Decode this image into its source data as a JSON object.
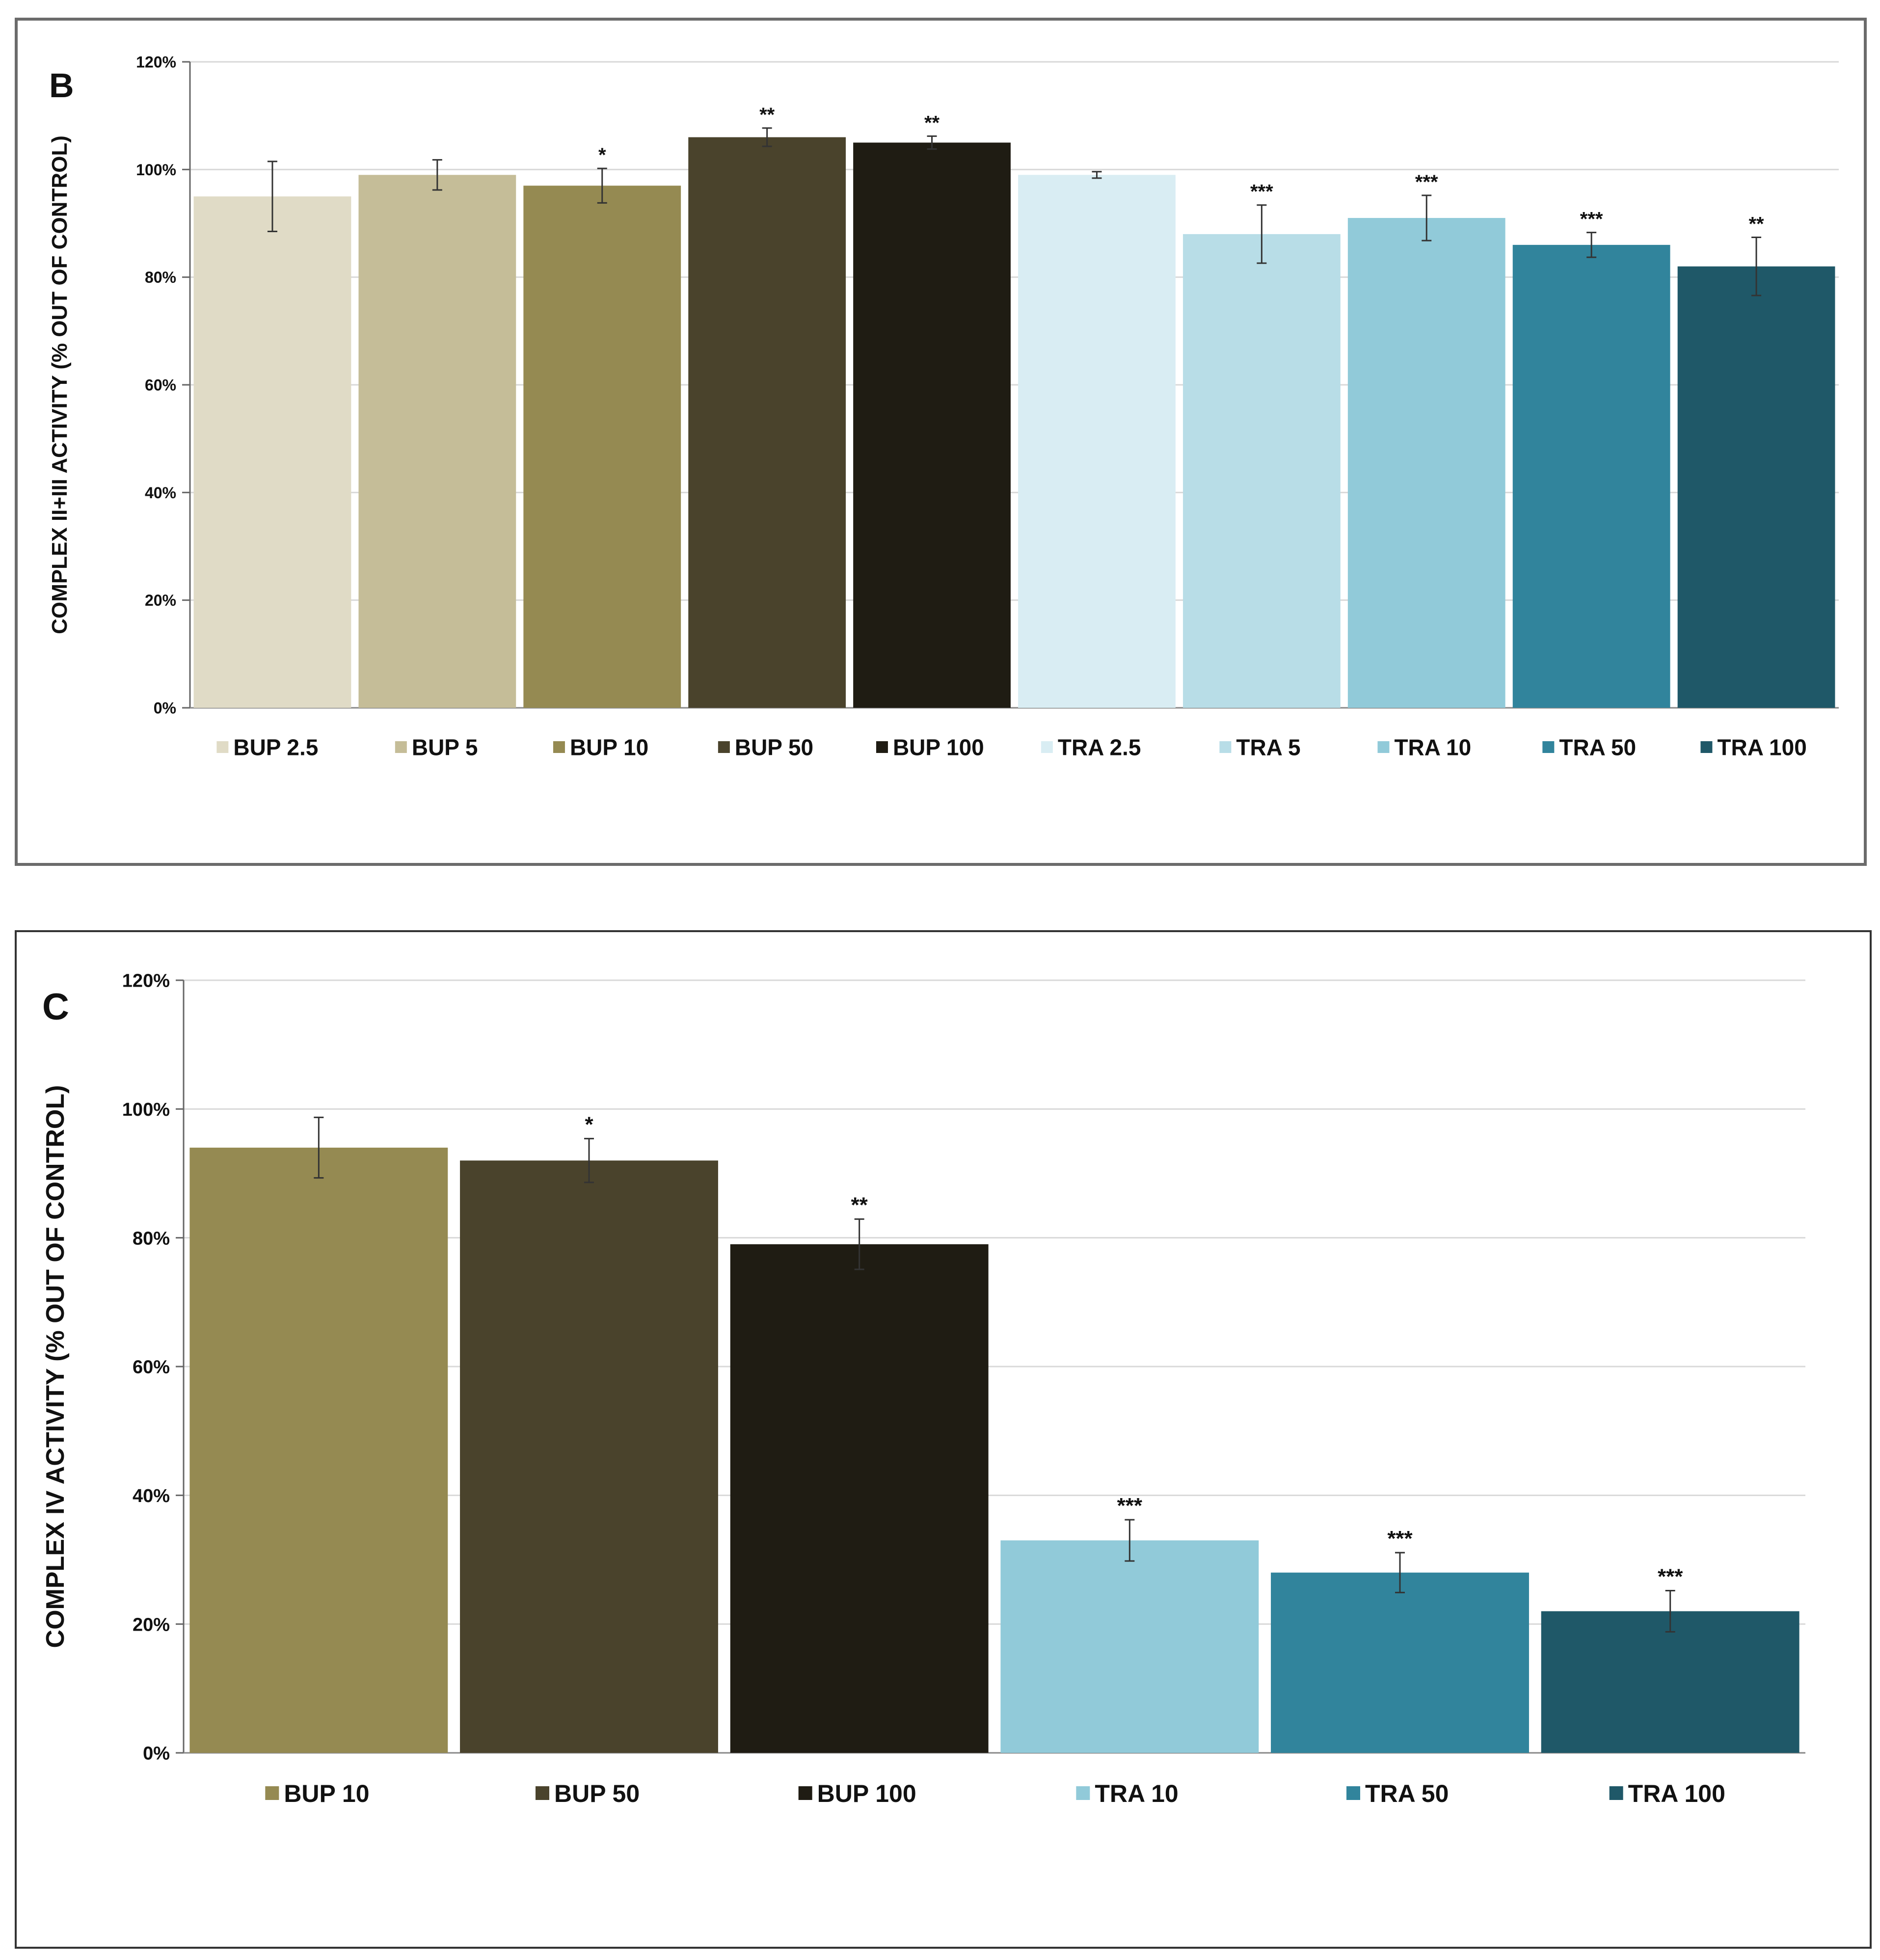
{
  "chart_data": [
    {
      "type": "bar",
      "panel_label": "B",
      "ylabel": "COMPLEX II+III ACTIVITY (% OUT OF CONTROL)",
      "ylim": [
        0,
        120
      ],
      "yticks": [
        "0%",
        "20%",
        "40%",
        "60%",
        "80%",
        "100%",
        "120%"
      ],
      "grid": true,
      "legend_position": "bottom",
      "categories": [
        "BUP 2.5",
        "BUP 5",
        "BUP 10",
        "BUP 50",
        "BUP 100",
        "TRA 2.5",
        "TRA 5",
        "TRA 10",
        "TRA 50",
        "TRA 100"
      ],
      "values": [
        95,
        99,
        97,
        106,
        105,
        99,
        88,
        91,
        86,
        82
      ],
      "errors": [
        6.5,
        2.8,
        3.2,
        1.7,
        1.2,
        0.6,
        5.4,
        4.2,
        2.3,
        5.4
      ],
      "significance": [
        "",
        "",
        "*",
        "**",
        "**",
        "",
        "***",
        "***",
        "***",
        "**"
      ],
      "colors": [
        "#e0dbc6",
        "#c5bd98",
        "#958a52",
        "#4a432c",
        "#1f1c13",
        "#d9edf3",
        "#b8dde7",
        "#91cad9",
        "#31849c",
        "#1f5868"
      ]
    },
    {
      "type": "bar",
      "panel_label": "C",
      "ylabel": "COMPLEX IV ACTIVITY (% OUT OF CONTROL)",
      "ylim": [
        0,
        120
      ],
      "yticks": [
        "0%",
        "20%",
        "40%",
        "60%",
        "80%",
        "100%",
        "120%"
      ],
      "grid": true,
      "legend_position": "bottom",
      "categories": [
        "BUP 10",
        "BUP 50",
        "BUP 100",
        "TRA 10",
        "TRA 50",
        "TRA 100"
      ],
      "values": [
        94,
        92,
        79,
        33,
        28,
        22
      ],
      "errors": [
        4.7,
        3.4,
        3.9,
        3.2,
        3.1,
        3.2
      ],
      "significance": [
        "",
        "*",
        "**",
        "***",
        "***",
        "***"
      ],
      "colors": [
        "#958a52",
        "#4a432c",
        "#1f1c13",
        "#91cad9",
        "#31849c",
        "#1f5868"
      ]
    }
  ]
}
